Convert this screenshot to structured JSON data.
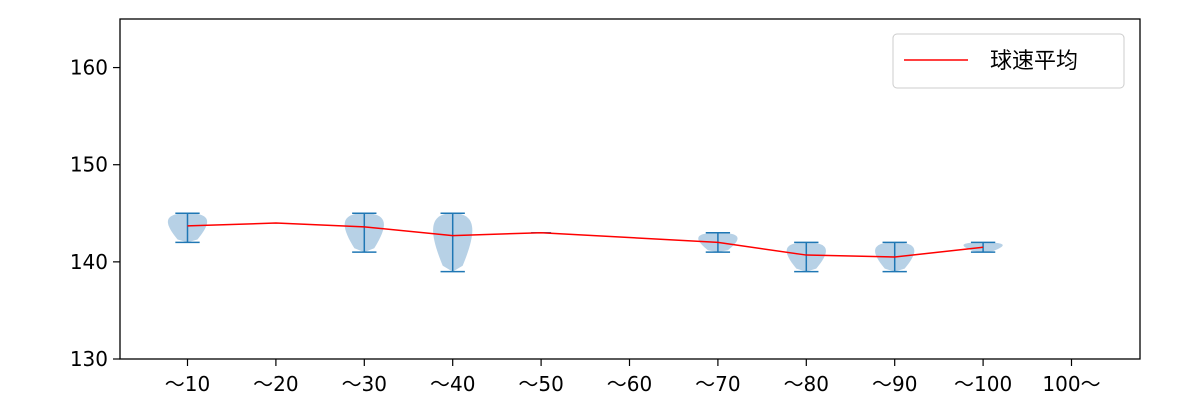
{
  "chart_data": {
    "type": "violin",
    "title": "",
    "xlabel": "",
    "ylabel": "",
    "ylim": [
      130,
      165
    ],
    "yticks": [
      130,
      140,
      150,
      160
    ],
    "categories": [
      "～10",
      "～20",
      "～30",
      "～40",
      "～50",
      "～60",
      "～70",
      "～80",
      "～90",
      "～100",
      "100～"
    ],
    "legend": {
      "position": "upper-right",
      "label": "球速平均"
    },
    "colors": {
      "violin_fill": "#b3cfe5",
      "violin_line": "#1f77b4",
      "mean_line": "#ff0000",
      "axis": "#000000"
    },
    "violins": [
      {
        "category": "～10",
        "min": 142,
        "max": 145,
        "width": 0.5
      },
      {
        "category": "～20",
        "min": 144,
        "max": 144,
        "width": 0
      },
      {
        "category": "～30",
        "min": 141,
        "max": 145,
        "width": 0.5
      },
      {
        "category": "～40",
        "min": 139,
        "max": 145,
        "width": 0.5
      },
      {
        "category": "～50",
        "min": 143,
        "max": 143,
        "width": 0.12
      },
      {
        "category": "～70",
        "min": 141,
        "max": 143,
        "width": 0.5
      },
      {
        "category": "～80",
        "min": 139,
        "max": 142,
        "width": 0.5
      },
      {
        "category": "～90",
        "min": 139,
        "max": 142,
        "width": 0.5
      },
      {
        "category": "～100",
        "min": 141,
        "max": 142,
        "width": 0.5
      }
    ],
    "series": [
      {
        "name": "球速平均",
        "x": [
          "～10",
          "～20",
          "～30",
          "～40",
          "～50",
          "～70",
          "～80",
          "～90",
          "～100"
        ],
        "values": [
          143.7,
          144.0,
          143.6,
          142.7,
          143.0,
          142.0,
          140.7,
          140.5,
          141.5
        ]
      }
    ]
  }
}
